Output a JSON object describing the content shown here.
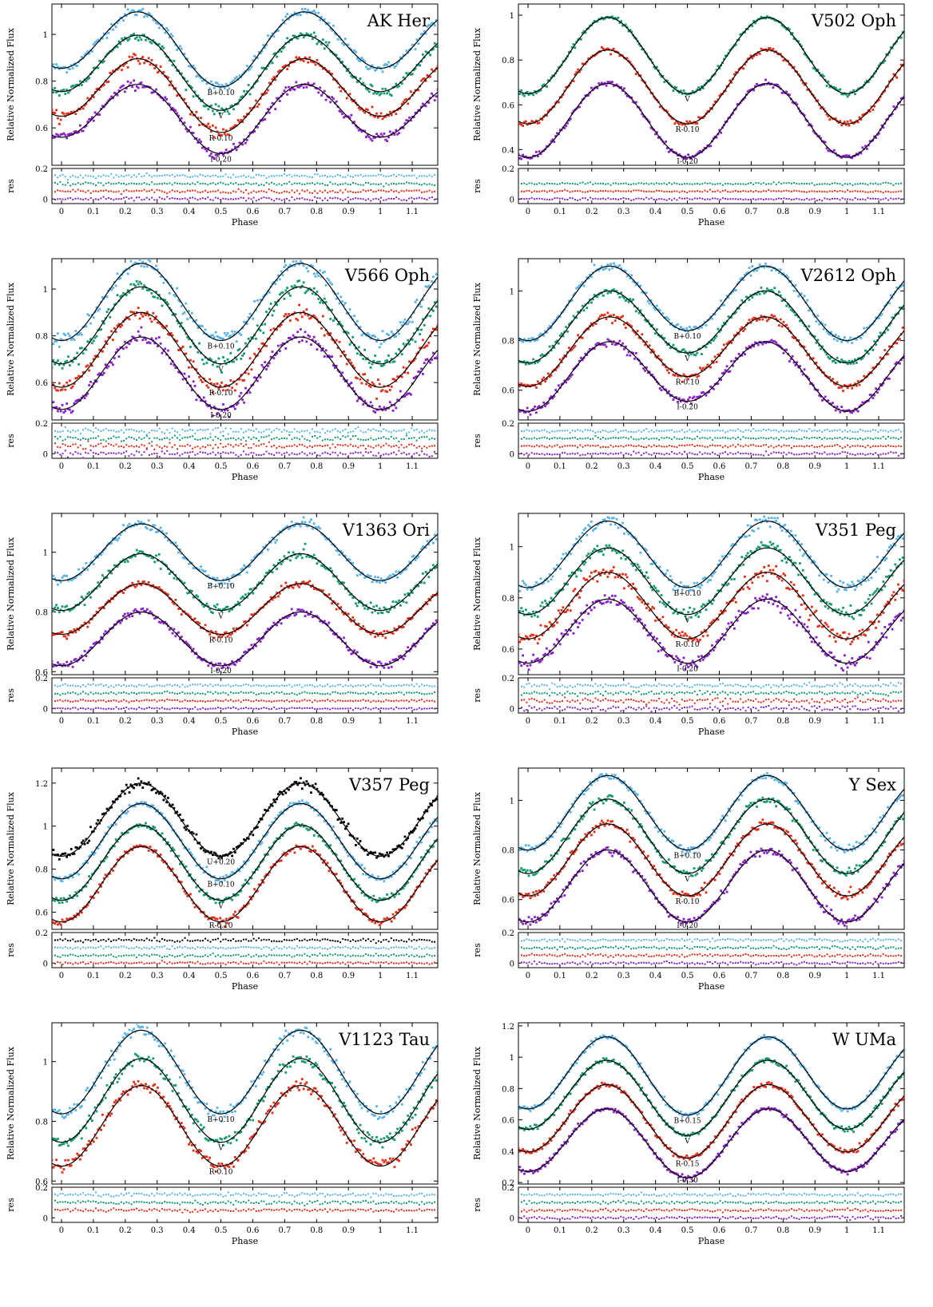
{
  "colors": {
    "U": "#000000",
    "B": "#56b4e9",
    "V": "#139a72",
    "R": "#e32e17",
    "I": "#8a1fc9",
    "model": "#000000"
  },
  "chart_data": [
    {
      "type": "scatter",
      "title": "AK Her",
      "xlabel": "Phase",
      "ylabel": "Relative Normalized Flux",
      "res_label": "res",
      "xlim": [
        -0.03,
        1.18
      ],
      "ylim": [
        0.44,
        1.13
      ],
      "res_ylim": [
        -0.03,
        0.2
      ],
      "xticks": [
        "0",
        "0.1",
        "0.2",
        "0.3",
        "0.4",
        "0.5",
        "0.6",
        "0.7",
        "0.8",
        "0.9",
        "1",
        "1.1"
      ],
      "yticks": [
        "0.6",
        "0.8",
        "1"
      ],
      "res_yticks": [
        "0",
        "0.2"
      ],
      "series": [
        {
          "name": "B+0.10",
          "band": "B",
          "base": 0.955,
          "amp1": 0.14,
          "amp2": 0.04,
          "noise": 0.01
        },
        {
          "name": "V",
          "band": "V",
          "base": 0.855,
          "amp1": 0.14,
          "amp2": 0.04,
          "noise": 0.01
        },
        {
          "name": "R-0.10",
          "band": "R",
          "base": 0.755,
          "amp1": 0.14,
          "amp2": 0.035,
          "noise": 0.01
        },
        {
          "name": "I-0.20",
          "band": "I",
          "base": 0.655,
          "amp1": 0.13,
          "amp2": 0.035,
          "noise": 0.01
        }
      ],
      "residual_offsets": [
        0.15,
        0.1,
        0.05,
        0.0
      ]
    },
    {
      "type": "scatter",
      "title": "V502 Oph",
      "xlabel": "Phase",
      "ylabel": "Relative Normalized Flux",
      "res_label": "res",
      "xlim": [
        -0.03,
        1.18
      ],
      "ylim": [
        0.33,
        1.05
      ],
      "res_ylim": [
        -0.03,
        0.2
      ],
      "xticks": [
        "0",
        "0.1",
        "0.2",
        "0.3",
        "0.4",
        "0.5",
        "0.6",
        "0.7",
        "0.8",
        "0.9",
        "1",
        "1.1"
      ],
      "yticks": [
        "0.4",
        "0.6",
        "0.8",
        "1"
      ],
      "res_yticks": [
        "0",
        "0.2"
      ],
      "series": [
        {
          "name": "V",
          "band": "V",
          "base": 0.82,
          "amp1": 0.17,
          "amp2": 0.0,
          "noise": 0.006
        },
        {
          "name": "R-0.10",
          "band": "R",
          "base": 0.68,
          "amp1": 0.165,
          "amp2": 0.0,
          "noise": 0.006
        },
        {
          "name": "I-0.20",
          "band": "I",
          "base": 0.53,
          "amp1": 0.165,
          "amp2": 0.0,
          "noise": 0.006
        }
      ],
      "residual_offsets": [
        0.1,
        0.05,
        0.0
      ]
    },
    {
      "type": "scatter",
      "title": "V566 Oph",
      "xlabel": "Phase",
      "ylabel": "Relative Normalized Flux",
      "res_label": "res",
      "xlim": [
        -0.03,
        1.18
      ],
      "ylim": [
        0.44,
        1.13
      ],
      "res_ylim": [
        -0.03,
        0.2
      ],
      "xticks": [
        "0",
        "0.1",
        "0.2",
        "0.3",
        "0.4",
        "0.5",
        "0.6",
        "0.7",
        "0.8",
        "0.9",
        "1",
        "1.1"
      ],
      "yticks": [
        "0.6",
        "0.8",
        "1"
      ],
      "res_yticks": [
        "0",
        "0.2"
      ],
      "series": [
        {
          "name": "B+0.10",
          "band": "B",
          "base": 0.945,
          "amp1": 0.165,
          "amp2": 0.0,
          "noise": 0.015
        },
        {
          "name": "V",
          "band": "V",
          "base": 0.845,
          "amp1": 0.165,
          "amp2": 0.0,
          "noise": 0.015
        },
        {
          "name": "R-0.10",
          "band": "R",
          "base": 0.74,
          "amp1": 0.16,
          "amp2": 0.0,
          "noise": 0.015
        },
        {
          "name": "I-0.20",
          "band": "I",
          "base": 0.64,
          "amp1": 0.155,
          "amp2": 0.0,
          "noise": 0.015
        }
      ],
      "residual_offsets": [
        0.15,
        0.1,
        0.05,
        0.0
      ]
    },
    {
      "type": "scatter",
      "title": "V2612 Oph",
      "xlabel": "Phase",
      "ylabel": "Relative Normalized Flux",
      "res_label": "res",
      "xlim": [
        -0.03,
        1.18
      ],
      "ylim": [
        0.48,
        1.13
      ],
      "res_ylim": [
        -0.03,
        0.2
      ],
      "xticks": [
        "0",
        "0.1",
        "0.2",
        "0.3",
        "0.4",
        "0.5",
        "0.6",
        "0.7",
        "0.8",
        "0.9",
        "1",
        "1.1"
      ],
      "yticks": [
        "0.6",
        "0.8",
        "1"
      ],
      "res_yticks": [
        "0",
        "0.2"
      ],
      "series": [
        {
          "name": "B+0.10",
          "band": "B",
          "base": 0.96,
          "amp1": 0.14,
          "amp2": -0.02,
          "noise": 0.008
        },
        {
          "name": "V",
          "band": "V",
          "base": 0.865,
          "amp1": 0.135,
          "amp2": -0.02,
          "noise": 0.008
        },
        {
          "name": "R-0.10",
          "band": "R",
          "base": 0.765,
          "amp1": 0.13,
          "amp2": -0.02,
          "noise": 0.008
        },
        {
          "name": "I-0.20",
          "band": "I",
          "base": 0.665,
          "amp1": 0.13,
          "amp2": -0.02,
          "noise": 0.008
        }
      ],
      "residual_offsets": [
        0.15,
        0.1,
        0.05,
        0.0
      ]
    },
    {
      "type": "scatter",
      "title": "V1363 Ori",
      "xlabel": "Phase",
      "ylabel": "Relative Normalized Flux",
      "res_label": "res",
      "xlim": [
        -0.03,
        1.18
      ],
      "ylim": [
        0.59,
        1.13
      ],
      "res_ylim": [
        -0.03,
        0.2
      ],
      "xticks": [
        "0",
        "0.1",
        "0.2",
        "0.3",
        "0.4",
        "0.5",
        "0.6",
        "0.7",
        "0.8",
        "0.9",
        "1",
        "1.1"
      ],
      "yticks": [
        "0.6",
        "0.8",
        "1"
      ],
      "res_yticks": [
        "0",
        "0.2"
      ],
      "series": [
        {
          "name": "B+0.10",
          "band": "B",
          "base": 1.0,
          "amp1": 0.095,
          "amp2": 0.0,
          "noise": 0.008
        },
        {
          "name": "V",
          "band": "V",
          "base": 0.9,
          "amp1": 0.095,
          "amp2": 0.0,
          "noise": 0.008
        },
        {
          "name": "R-0.10",
          "band": "R",
          "base": 0.81,
          "amp1": 0.085,
          "amp2": 0.0,
          "noise": 0.006
        },
        {
          "name": "I-0.20",
          "band": "I",
          "base": 0.71,
          "amp1": 0.09,
          "amp2": 0.0,
          "noise": 0.006
        }
      ],
      "residual_offsets": [
        0.15,
        0.1,
        0.05,
        0.0
      ]
    },
    {
      "type": "scatter",
      "title": "V351 Peg",
      "xlabel": "Phase",
      "ylabel": "Relative Normalized Flux",
      "res_label": "res",
      "xlim": [
        -0.03,
        1.18
      ],
      "ylim": [
        0.5,
        1.13
      ],
      "res_ylim": [
        -0.03,
        0.2
      ],
      "xticks": [
        "0",
        "0.1",
        "0.2",
        "0.3",
        "0.4",
        "0.5",
        "0.6",
        "0.7",
        "0.8",
        "0.9",
        "1",
        "1.1"
      ],
      "yticks": [
        "0.6",
        "0.8",
        "1"
      ],
      "res_yticks": [
        "0",
        "0.2"
      ],
      "series": [
        {
          "name": "B+0.10",
          "band": "B",
          "base": 0.97,
          "amp1": 0.13,
          "amp2": 0.0,
          "noise": 0.012
        },
        {
          "name": "V",
          "band": "V",
          "base": 0.865,
          "amp1": 0.13,
          "amp2": 0.0,
          "noise": 0.012
        },
        {
          "name": "R-0.10",
          "band": "R",
          "base": 0.77,
          "amp1": 0.13,
          "amp2": 0.0,
          "noise": 0.014
        },
        {
          "name": "I-0.20",
          "band": "I",
          "base": 0.67,
          "amp1": 0.125,
          "amp2": 0.0,
          "noise": 0.014
        }
      ],
      "residual_offsets": [
        0.15,
        0.1,
        0.05,
        0.0
      ]
    },
    {
      "type": "scatter",
      "title": "V357 Peg",
      "xlabel": "Phase",
      "ylabel": "Relative Normalized Flux",
      "res_label": "res",
      "xlim": [
        -0.03,
        1.18
      ],
      "ylim": [
        0.52,
        1.27
      ],
      "res_ylim": [
        -0.03,
        0.2
      ],
      "xticks": [
        "0",
        "0.1",
        "0.2",
        "0.3",
        "0.4",
        "0.5",
        "0.6",
        "0.7",
        "0.8",
        "0.9",
        "1",
        "1.1"
      ],
      "yticks": [
        "0.6",
        "0.8",
        "1",
        "1.2"
      ],
      "res_yticks": [
        "0",
        "0.2"
      ],
      "series": [
        {
          "name": "U+0.20",
          "band": "U",
          "base": 1.03,
          "amp1": 0.17,
          "amp2": 0.0,
          "noise": 0.01
        },
        {
          "name": "B+0.10",
          "band": "B",
          "base": 0.93,
          "amp1": 0.175,
          "amp2": 0.0,
          "noise": 0.008
        },
        {
          "name": "V",
          "band": "V",
          "base": 0.83,
          "amp1": 0.175,
          "amp2": 0.0,
          "noise": 0.008
        },
        {
          "name": "R-0.10",
          "band": "R",
          "base": 0.73,
          "amp1": 0.175,
          "amp2": 0.0,
          "noise": 0.008
        }
      ],
      "residual_offsets": [
        0.15,
        0.1,
        0.05,
        0.0
      ]
    },
    {
      "type": "scatter",
      "title": "Y Sex",
      "xlabel": "Phase",
      "ylabel": "Relative Normalized Flux",
      "res_label": "res",
      "xlim": [
        -0.03,
        1.18
      ],
      "ylim": [
        0.48,
        1.13
      ],
      "res_ylim": [
        -0.03,
        0.2
      ],
      "xticks": [
        "0",
        "0.1",
        "0.2",
        "0.3",
        "0.4",
        "0.5",
        "0.6",
        "0.7",
        "0.8",
        "0.9",
        "1",
        "1.1"
      ],
      "yticks": [
        "0.6",
        "0.8",
        "1"
      ],
      "res_yticks": [
        "0",
        "0.2"
      ],
      "series": [
        {
          "name": "B+0.10",
          "band": "B",
          "base": 0.95,
          "amp1": 0.15,
          "amp2": 0.0,
          "noise": 0.008
        },
        {
          "name": "V",
          "band": "V",
          "base": 0.855,
          "amp1": 0.15,
          "amp2": 0.0,
          "noise": 0.008
        },
        {
          "name": "R-0.10",
          "band": "R",
          "base": 0.76,
          "amp1": 0.145,
          "amp2": 0.0,
          "noise": 0.008
        },
        {
          "name": "I-0.20",
          "band": "I",
          "base": 0.655,
          "amp1": 0.145,
          "amp2": 0.0,
          "noise": 0.008
        }
      ],
      "residual_offsets": [
        0.15,
        0.1,
        0.05,
        0.0
      ]
    },
    {
      "type": "scatter",
      "title": "V1123 Tau",
      "xlabel": "Phase",
      "ylabel": "Relative Normalized Flux",
      "res_label": "res",
      "xlim": [
        -0.03,
        1.18
      ],
      "ylim": [
        0.59,
        1.13
      ],
      "res_ylim": [
        -0.03,
        0.2
      ],
      "xticks": [
        "0",
        "0.1",
        "0.2",
        "0.3",
        "0.4",
        "0.5",
        "0.6",
        "0.7",
        "0.8",
        "0.9",
        "1",
        "1.1"
      ],
      "yticks": [
        "0.6",
        "0.8",
        "1"
      ],
      "res_yticks": [
        "0",
        "0.2"
      ],
      "series": [
        {
          "name": "B+0.10",
          "band": "B",
          "base": 0.965,
          "amp1": 0.14,
          "amp2": 0.0,
          "noise": 0.01
        },
        {
          "name": "V",
          "band": "V",
          "base": 0.87,
          "amp1": 0.14,
          "amp2": 0.0,
          "noise": 0.01
        },
        {
          "name": "R-0.10",
          "band": "R",
          "base": 0.785,
          "amp1": 0.135,
          "amp2": 0.0,
          "noise": 0.01
        }
      ],
      "residual_offsets": [
        0.15,
        0.1,
        0.05
      ]
    },
    {
      "type": "scatter",
      "title": "W UMa",
      "xlabel": "Phase",
      "ylabel": "Relative Normalized Flux",
      "res_label": "res",
      "xlim": [
        -0.03,
        1.18
      ],
      "ylim": [
        0.19,
        1.22
      ],
      "res_ylim": [
        -0.03,
        0.2
      ],
      "xticks": [
        "0",
        "0.1",
        "0.2",
        "0.3",
        "0.4",
        "0.5",
        "0.6",
        "0.7",
        "0.8",
        "0.9",
        "1",
        "1.1"
      ],
      "yticks": [
        "0.2",
        "0.4",
        "0.6",
        "0.8",
        "1",
        "1.2"
      ],
      "res_yticks": [
        "0",
        "0.2"
      ],
      "series": [
        {
          "name": "B+0.15",
          "band": "B",
          "base": 0.89,
          "amp1": 0.24,
          "amp2": 0.02,
          "noise": 0.008
        },
        {
          "name": "V",
          "band": "V",
          "base": 0.75,
          "amp1": 0.23,
          "amp2": 0.02,
          "noise": 0.008
        },
        {
          "name": "R-0.15",
          "band": "R",
          "base": 0.6,
          "amp1": 0.225,
          "amp2": 0.02,
          "noise": 0.008
        },
        {
          "name": "I-0.30",
          "band": "I",
          "base": 0.46,
          "amp1": 0.21,
          "amp2": 0.02,
          "noise": 0.008
        }
      ],
      "residual_offsets": [
        0.15,
        0.1,
        0.05,
        0.0
      ]
    }
  ]
}
